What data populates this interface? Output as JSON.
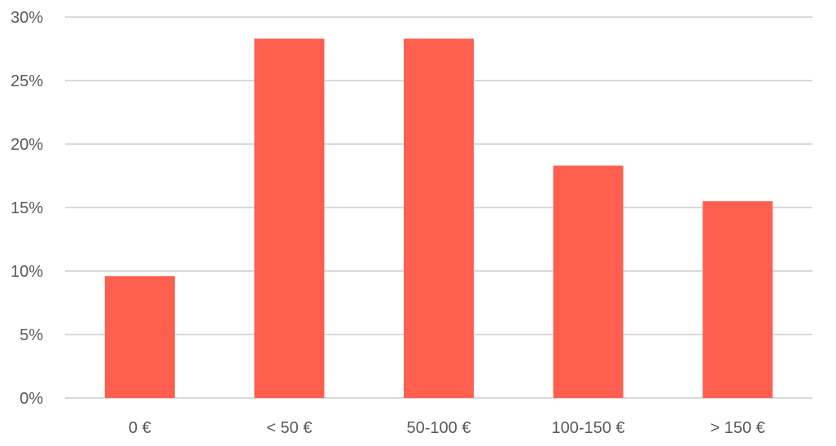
{
  "chart_data": {
    "type": "bar",
    "categories": [
      "0 €",
      "< 50 €",
      "50-100 €",
      "100-150 €",
      "> 150 €"
    ],
    "values": [
      9.6,
      28.3,
      28.3,
      18.3,
      15.5
    ],
    "ylim": [
      0,
      30
    ],
    "yticks": [
      0,
      5,
      10,
      15,
      20,
      25,
      30
    ],
    "ytick_labels": [
      "0%",
      "5%",
      "10%",
      "15%",
      "20%",
      "25%",
      "30%"
    ],
    "grid": true,
    "legend": "none",
    "bar_color": "#ff5f4f",
    "title": "",
    "xlabel": "",
    "ylabel": ""
  }
}
